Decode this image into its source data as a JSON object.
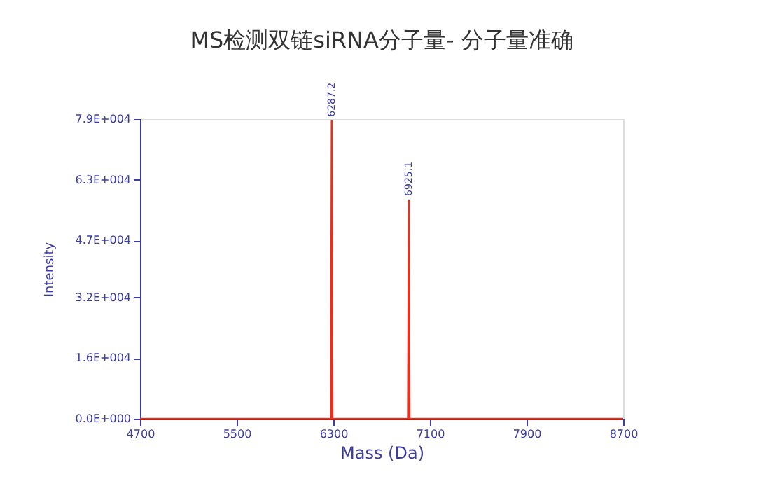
{
  "chart_data": {
    "type": "line",
    "title": "MS检测双链siRNA分子量- 分子量准确",
    "xlabel": "Mass (Da)",
    "ylabel": "Intensity",
    "x": [
      4700,
      6280,
      6287.2,
      6294,
      6918,
      6925.1,
      6932,
      8700
    ],
    "series": [
      {
        "color": "#e8301e",
        "values": [
          0,
          0,
          78500,
          0,
          0,
          57600,
          0,
          0
        ]
      }
    ],
    "annotations": [
      {
        "text": "6287.2",
        "x": 6287.2,
        "y": 78500
      },
      {
        "text": "6925.1",
        "x": 6925.1,
        "y": 57600
      }
    ],
    "xlim": [
      4700,
      8700
    ],
    "xticks": [
      4700,
      5500,
      6300,
      7100,
      7900,
      8700
    ],
    "ylim": [
      0,
      79000
    ],
    "yticks": [
      {
        "value": 0,
        "label": "0.0E+000"
      },
      {
        "value": 16000,
        "label": "1.6E+004"
      },
      {
        "value": 32000,
        "label": "3.2E+004"
      },
      {
        "value": 47000,
        "label": "4.7E+004"
      },
      {
        "value": 63000,
        "label": "6.3E+004"
      },
      {
        "value": 79000,
        "label": "7.9E+004"
      }
    ],
    "grid": false,
    "marker": "none",
    "line_style": "solid"
  }
}
